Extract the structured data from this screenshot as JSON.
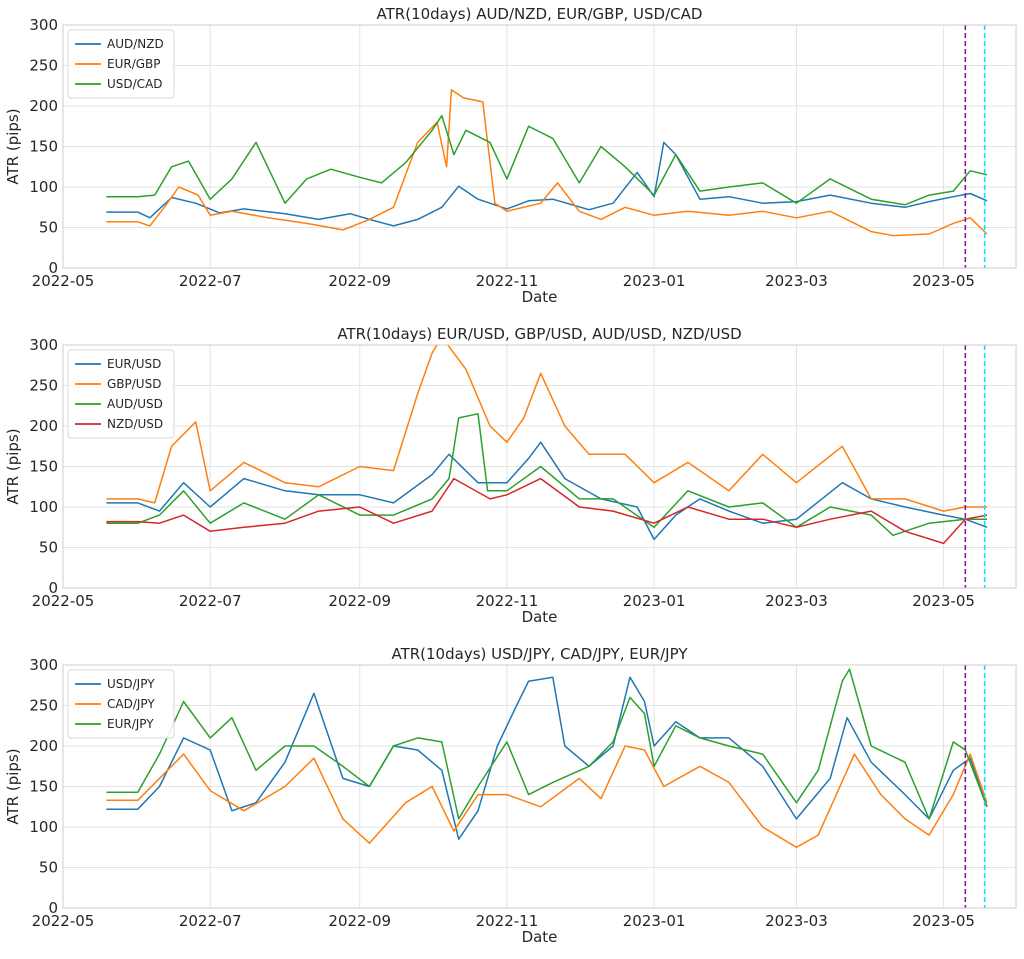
{
  "chart_data": [
    {
      "type": "line",
      "title": "ATR(10days)  AUD/NZD, EUR/GBP, USD/CAD",
      "xlabel": "Date",
      "ylabel": "ATR (pips)",
      "ylim": [
        0,
        300
      ],
      "yticks": [
        "0",
        "50",
        "100",
        "150",
        "200",
        "250",
        "300"
      ],
      "xticks": [
        "2022-05",
        "2022-07",
        "2022-09",
        "2022-11",
        "2023-01",
        "2023-03",
        "2023-05"
      ],
      "grid": true,
      "legend": "top-left",
      "vlines": [
        {
          "date": "2023-05-10",
          "color": "#8b1a9b",
          "style": "dashed"
        },
        {
          "date": "2023-05-18",
          "color": "#00e5ff",
          "style": "dashed"
        }
      ],
      "series": [
        {
          "name": "AUD/NZD",
          "color": "#1f77b4",
          "x": [
            "2022-05-19",
            "2022-06-01",
            "2022-06-06",
            "2022-06-15",
            "2022-06-25",
            "2022-07-05",
            "2022-07-15",
            "2022-08-01",
            "2022-08-15",
            "2022-08-28",
            "2022-09-05",
            "2022-09-15",
            "2022-09-25",
            "2022-10-05",
            "2022-10-12",
            "2022-10-20",
            "2022-11-01",
            "2022-11-10",
            "2022-11-20",
            "2022-12-05",
            "2022-12-15",
            "2022-12-25",
            "2023-01-01",
            "2023-01-05",
            "2023-01-10",
            "2023-01-20",
            "2023-02-01",
            "2023-02-15",
            "2023-03-01",
            "2023-03-15",
            "2023-04-01",
            "2023-04-15",
            "2023-04-25",
            "2023-05-05",
            "2023-05-12",
            "2023-05-19"
          ],
          "values": [
            69,
            69,
            62,
            87,
            80,
            68,
            73,
            67,
            60,
            67,
            60,
            52,
            60,
            75,
            101,
            85,
            73,
            83,
            85,
            72,
            80,
            118,
            88,
            155,
            140,
            85,
            88,
            80,
            82,
            90,
            80,
            75,
            82,
            88,
            92,
            83
          ]
        },
        {
          "name": "EUR/GBP",
          "color": "#ff7f0e",
          "x": [
            "2022-05-19",
            "2022-06-01",
            "2022-06-06",
            "2022-06-12",
            "2022-06-18",
            "2022-06-26",
            "2022-07-01",
            "2022-07-10",
            "2022-07-25",
            "2022-08-10",
            "2022-08-25",
            "2022-09-05",
            "2022-09-15",
            "2022-09-25",
            "2022-10-03",
            "2022-10-07",
            "2022-10-09",
            "2022-10-14",
            "2022-10-22",
            "2022-10-27",
            "2022-11-01",
            "2022-11-15",
            "2022-11-22",
            "2022-12-01",
            "2022-12-10",
            "2022-12-20",
            "2023-01-01",
            "2023-01-15",
            "2023-02-01",
            "2023-02-15",
            "2023-03-01",
            "2023-03-15",
            "2023-04-01",
            "2023-04-10",
            "2023-04-25",
            "2023-05-05",
            "2023-05-12",
            "2023-05-19"
          ],
          "values": [
            57,
            57,
            52,
            75,
            100,
            90,
            65,
            70,
            62,
            55,
            47,
            60,
            75,
            155,
            180,
            125,
            220,
            210,
            205,
            80,
            70,
            80,
            105,
            70,
            60,
            75,
            65,
            70,
            65,
            70,
            62,
            70,
            45,
            40,
            42,
            55,
            62,
            42
          ]
        },
        {
          "name": "USD/CAD",
          "color": "#2ca02c",
          "x": [
            "2022-05-19",
            "2022-06-01",
            "2022-06-08",
            "2022-06-15",
            "2022-06-22",
            "2022-07-01",
            "2022-07-10",
            "2022-07-20",
            "2022-08-01",
            "2022-08-10",
            "2022-08-20",
            "2022-09-01",
            "2022-09-10",
            "2022-09-20",
            "2022-10-01",
            "2022-10-05",
            "2022-10-10",
            "2022-10-15",
            "2022-10-25",
            "2022-11-01",
            "2022-11-10",
            "2022-11-20",
            "2022-12-01",
            "2022-12-10",
            "2022-12-20",
            "2023-01-01",
            "2023-01-10",
            "2023-01-20",
            "2023-02-01",
            "2023-02-15",
            "2023-03-01",
            "2023-03-15",
            "2023-04-01",
            "2023-04-15",
            "2023-04-25",
            "2023-05-05",
            "2023-05-12",
            "2023-05-19"
          ],
          "values": [
            88,
            88,
            90,
            125,
            132,
            85,
            110,
            155,
            80,
            110,
            122,
            112,
            105,
            130,
            170,
            188,
            140,
            170,
            155,
            110,
            175,
            160,
            105,
            150,
            125,
            90,
            140,
            95,
            100,
            105,
            80,
            110,
            85,
            78,
            90,
            95,
            120,
            115
          ]
        }
      ]
    },
    {
      "type": "line",
      "title": "ATR(10days) EUR/USD, GBP/USD, AUD/USD, NZD/USD",
      "xlabel": "Date",
      "ylabel": "ATR (pips)",
      "ylim": [
        0,
        300
      ],
      "yticks": [
        "0",
        "50",
        "100",
        "150",
        "200",
        "250",
        "300"
      ],
      "xticks": [
        "2022-05",
        "2022-07",
        "2022-09",
        "2022-11",
        "2023-01",
        "2023-03",
        "2023-05"
      ],
      "grid": true,
      "legend": "top-left",
      "vlines": [
        {
          "date": "2023-05-10",
          "color": "#8b1a9b",
          "style": "dashed"
        },
        {
          "date": "2023-05-18",
          "color": "#00e5ff",
          "style": "dashed"
        }
      ],
      "series": [
        {
          "name": "EUR/USD",
          "color": "#1f77b4",
          "x": [
            "2022-05-19",
            "2022-06-01",
            "2022-06-10",
            "2022-06-20",
            "2022-07-01",
            "2022-07-15",
            "2022-08-01",
            "2022-08-15",
            "2022-09-01",
            "2022-09-15",
            "2022-10-01",
            "2022-10-08",
            "2022-10-20",
            "2022-11-01",
            "2022-11-10",
            "2022-11-15",
            "2022-11-25",
            "2022-12-10",
            "2022-12-25",
            "2023-01-01",
            "2023-01-10",
            "2023-01-20",
            "2023-02-01",
            "2023-02-15",
            "2023-03-01",
            "2023-03-20",
            "2023-04-01",
            "2023-04-15",
            "2023-05-01",
            "2023-05-10",
            "2023-05-19"
          ],
          "values": [
            105,
            105,
            95,
            130,
            100,
            135,
            120,
            115,
            115,
            105,
            140,
            165,
            130,
            130,
            160,
            180,
            135,
            110,
            100,
            60,
            90,
            110,
            95,
            80,
            85,
            130,
            110,
            100,
            90,
            85,
            75
          ]
        },
        {
          "name": "GBP/USD",
          "color": "#ff7f0e",
          "x": [
            "2022-05-19",
            "2022-06-01",
            "2022-06-08",
            "2022-06-15",
            "2022-06-25",
            "2022-07-01",
            "2022-07-15",
            "2022-08-01",
            "2022-08-15",
            "2022-09-01",
            "2022-09-15",
            "2022-09-25",
            "2022-10-01",
            "2022-10-05",
            "2022-10-15",
            "2022-10-25",
            "2022-11-01",
            "2022-11-08",
            "2022-11-15",
            "2022-11-25",
            "2022-12-05",
            "2022-12-20",
            "2023-01-01",
            "2023-01-15",
            "2023-02-01",
            "2023-02-15",
            "2023-03-01",
            "2023-03-20",
            "2023-04-01",
            "2023-04-15",
            "2023-05-01",
            "2023-05-10",
            "2023-05-19"
          ],
          "values": [
            110,
            110,
            105,
            175,
            205,
            120,
            155,
            130,
            125,
            150,
            145,
            240,
            290,
            310,
            270,
            200,
            180,
            210,
            265,
            200,
            165,
            165,
            130,
            155,
            120,
            165,
            130,
            175,
            110,
            110,
            95,
            100,
            100
          ]
        },
        {
          "name": "AUD/USD",
          "color": "#2ca02c",
          "x": [
            "2022-05-19",
            "2022-06-01",
            "2022-06-10",
            "2022-06-20",
            "2022-07-01",
            "2022-07-15",
            "2022-08-01",
            "2022-08-15",
            "2022-09-01",
            "2022-09-15",
            "2022-10-01",
            "2022-10-08",
            "2022-10-12",
            "2022-10-20",
            "2022-10-24",
            "2022-11-01",
            "2022-11-15",
            "2022-12-01",
            "2022-12-15",
            "2023-01-01",
            "2023-01-15",
            "2023-02-01",
            "2023-02-15",
            "2023-03-01",
            "2023-03-15",
            "2023-04-01",
            "2023-04-10",
            "2023-04-25",
            "2023-05-10",
            "2023-05-19"
          ],
          "values": [
            80,
            80,
            90,
            120,
            80,
            105,
            85,
            115,
            90,
            90,
            110,
            135,
            210,
            215,
            120,
            120,
            150,
            110,
            110,
            75,
            120,
            100,
            105,
            75,
            100,
            90,
            65,
            80,
            85,
            85
          ]
        },
        {
          "name": "NZD/USD",
          "color": "#d62728",
          "x": [
            "2022-05-19",
            "2022-06-01",
            "2022-06-10",
            "2022-06-20",
            "2022-07-01",
            "2022-07-15",
            "2022-08-01",
            "2022-08-15",
            "2022-09-01",
            "2022-09-15",
            "2022-10-01",
            "2022-10-10",
            "2022-10-25",
            "2022-11-01",
            "2022-11-15",
            "2022-12-01",
            "2022-12-15",
            "2023-01-01",
            "2023-01-15",
            "2023-02-01",
            "2023-02-15",
            "2023-03-01",
            "2023-03-15",
            "2023-04-01",
            "2023-04-15",
            "2023-05-01",
            "2023-05-10",
            "2023-05-19"
          ],
          "values": [
            82,
            82,
            80,
            90,
            70,
            75,
            80,
            95,
            100,
            80,
            95,
            135,
            110,
            115,
            135,
            100,
            95,
            80,
            100,
            85,
            85,
            75,
            85,
            95,
            70,
            55,
            85,
            90
          ]
        }
      ]
    },
    {
      "type": "line",
      "title": "ATR(10days) USD/JPY, CAD/JPY, EUR/JPY",
      "xlabel": "Date",
      "ylabel": "ATR (pips)",
      "ylim": [
        0,
        300
      ],
      "yticks": [
        "0",
        "50",
        "100",
        "150",
        "200",
        "250",
        "300"
      ],
      "xticks": [
        "2022-05",
        "2022-07",
        "2022-09",
        "2022-11",
        "2023-01",
        "2023-03",
        "2023-05"
      ],
      "grid": true,
      "legend": "top-left",
      "vlines": [
        {
          "date": "2023-05-10",
          "color": "#8b1a9b",
          "style": "dashed"
        },
        {
          "date": "2023-05-18",
          "color": "#00e5ff",
          "style": "dashed"
        }
      ],
      "series": [
        {
          "name": "USD/JPY",
          "color": "#1f77b4",
          "x": [
            "2022-05-19",
            "2022-06-01",
            "2022-06-10",
            "2022-06-20",
            "2022-07-01",
            "2022-07-10",
            "2022-07-20",
            "2022-08-01",
            "2022-08-13",
            "2022-08-25",
            "2022-09-05",
            "2022-09-15",
            "2022-09-25",
            "2022-10-05",
            "2022-10-12",
            "2022-10-20",
            "2022-10-28",
            "2022-11-05",
            "2022-11-10",
            "2022-11-20",
            "2022-11-25",
            "2022-12-05",
            "2022-12-15",
            "2022-12-22",
            "2022-12-28",
            "2023-01-01",
            "2023-01-10",
            "2023-01-20",
            "2023-02-01",
            "2023-02-15",
            "2023-03-01",
            "2023-03-15",
            "2023-03-22",
            "2023-04-01",
            "2023-04-15",
            "2023-04-25",
            "2023-05-05",
            "2023-05-12",
            "2023-05-19"
          ],
          "values": [
            122,
            122,
            150,
            210,
            195,
            120,
            130,
            180,
            265,
            160,
            150,
            200,
            195,
            170,
            85,
            120,
            200,
            250,
            280,
            285,
            200,
            175,
            200,
            285,
            255,
            200,
            230,
            210,
            210,
            175,
            110,
            160,
            235,
            180,
            140,
            110,
            170,
            185,
            125
          ]
        },
        {
          "name": "CAD/JPY",
          "color": "#ff7f0e",
          "x": [
            "2022-05-19",
            "2022-06-01",
            "2022-06-20",
            "2022-07-01",
            "2022-07-15",
            "2022-08-01",
            "2022-08-13",
            "2022-08-25",
            "2022-09-05",
            "2022-09-20",
            "2022-10-01",
            "2022-10-10",
            "2022-10-20",
            "2022-11-01",
            "2022-11-15",
            "2022-12-01",
            "2022-12-10",
            "2022-12-20",
            "2022-12-28",
            "2023-01-05",
            "2023-01-20",
            "2023-02-01",
            "2023-02-15",
            "2023-03-01",
            "2023-03-10",
            "2023-03-25",
            "2023-04-05",
            "2023-04-15",
            "2023-04-25",
            "2023-05-05",
            "2023-05-12",
            "2023-05-19"
          ],
          "values": [
            133,
            133,
            190,
            145,
            120,
            150,
            185,
            110,
            80,
            130,
            150,
            95,
            140,
            140,
            125,
            160,
            135,
            200,
            195,
            150,
            175,
            155,
            100,
            75,
            90,
            190,
            140,
            110,
            90,
            140,
            190,
            130
          ]
        },
        {
          "name": "EUR/JPY",
          "color": "#2ca02c",
          "x": [
            "2022-05-19",
            "2022-06-01",
            "2022-06-10",
            "2022-06-20",
            "2022-07-01",
            "2022-07-10",
            "2022-07-20",
            "2022-08-01",
            "2022-08-13",
            "2022-08-25",
            "2022-09-05",
            "2022-09-15",
            "2022-09-25",
            "2022-10-05",
            "2022-10-12",
            "2022-10-20",
            "2022-11-01",
            "2022-11-10",
            "2022-11-20",
            "2022-12-05",
            "2022-12-15",
            "2022-12-22",
            "2022-12-28",
            "2023-01-01",
            "2023-01-10",
            "2023-01-20",
            "2023-02-01",
            "2023-02-15",
            "2023-03-01",
            "2023-03-10",
            "2023-03-20",
            "2023-03-23",
            "2023-04-01",
            "2023-04-15",
            "2023-04-25",
            "2023-05-05",
            "2023-05-10",
            "2023-05-19"
          ],
          "values": [
            143,
            143,
            190,
            255,
            210,
            235,
            170,
            200,
            200,
            175,
            150,
            200,
            210,
            205,
            110,
            150,
            205,
            140,
            155,
            175,
            205,
            260,
            240,
            175,
            225,
            210,
            200,
            190,
            130,
            170,
            280,
            295,
            200,
            180,
            110,
            205,
            195,
            125
          ]
        }
      ]
    }
  ]
}
